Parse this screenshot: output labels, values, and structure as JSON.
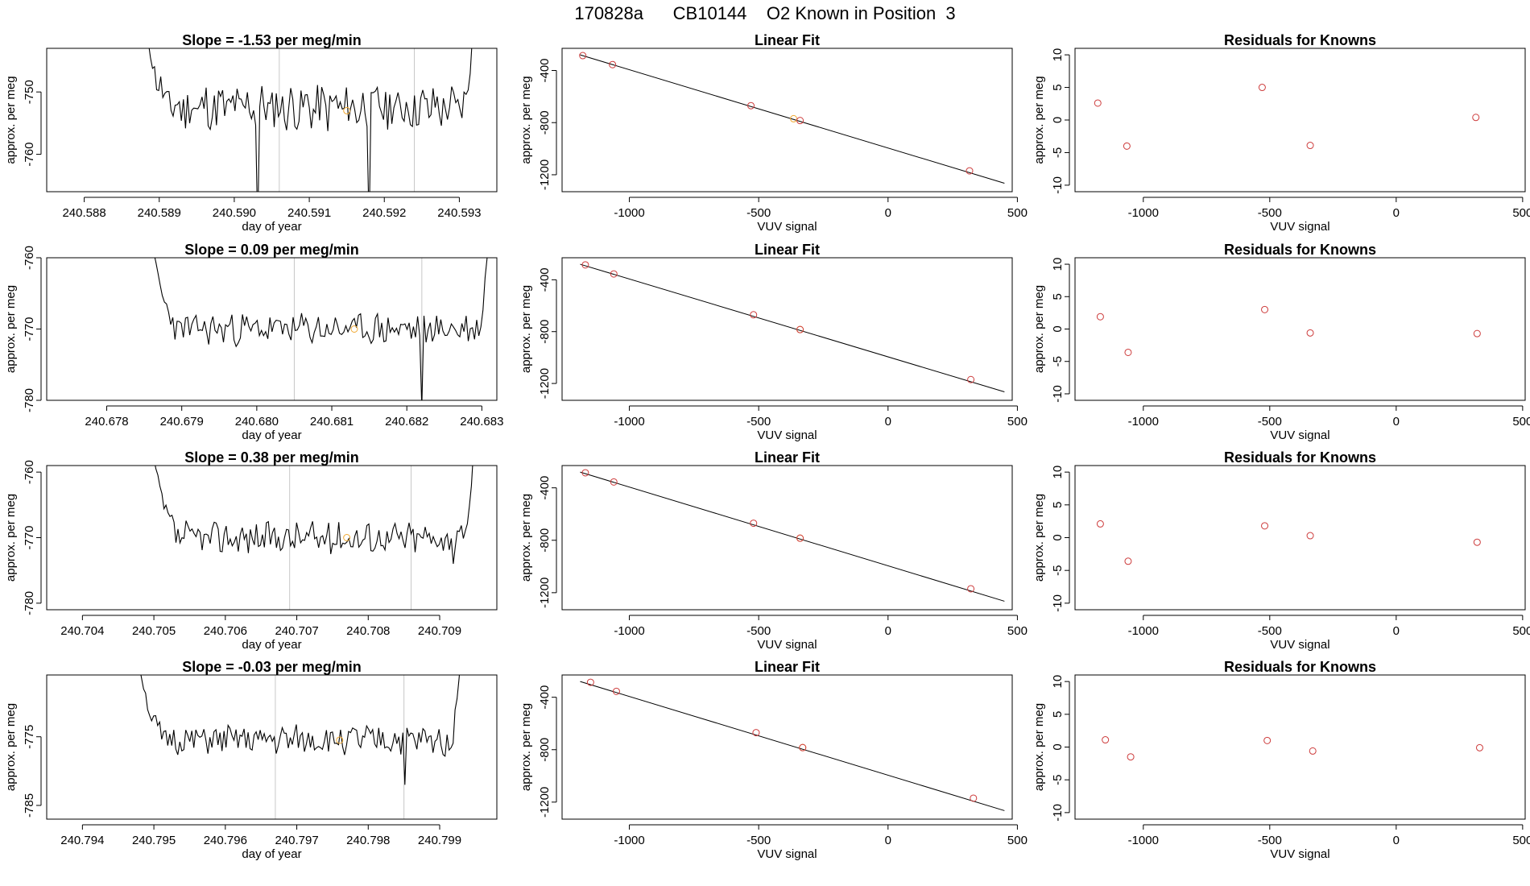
{
  "page_title": "170828a      CB10144    O2 Known in Position  3",
  "colors": {
    "line": "#000000",
    "known_point": "#cd3b3b",
    "sample_point": "#f0a830",
    "marker": "#c8c8c8",
    "axis": "#000000"
  },
  "chart_data": [
    {
      "type": "line",
      "row": 0,
      "col": 0,
      "title": "Slope =  -1.53  per meg/min",
      "xlabel": "day of year",
      "ylabel": "approx. per meg",
      "xlim": [
        240.5875,
        240.5935
      ],
      "ylim": [
        -766,
        -743
      ],
      "xticks": [
        240.588,
        240.589,
        240.59,
        240.591,
        240.592,
        240.593
      ],
      "xtick_labels": [
        "240.588",
        "240.589",
        "240.590",
        "240.591",
        "240.592",
        "240.593"
      ],
      "yticks": [
        -750,
        -760
      ],
      "ytick_labels": [
        "-750",
        "-760"
      ],
      "x_start": 240.5888,
      "x_end": 240.5932,
      "baseline": -752.5,
      "noise": 3.5,
      "seed": 11,
      "edge_start": -738,
      "edge_end": -738,
      "spikes": [
        [
          240.5903,
          -772
        ],
        [
          240.5918,
          -772
        ]
      ],
      "vlines": [
        240.5906,
        240.5924
      ],
      "sample_point": [
        240.5915,
        -753
      ]
    },
    {
      "type": "scatter",
      "row": 0,
      "col": 1,
      "title": "Linear Fit",
      "xlabel": "VUV signal",
      "ylabel": "approx. per meg",
      "xlim": [
        -1260,
        480
      ],
      "ylim": [
        -1330,
        -230
      ],
      "xticks": [
        -1000,
        -500,
        0,
        500
      ],
      "xtick_labels": [
        "-1000",
        "-500",
        "0",
        "500"
      ],
      "yticks": [
        -400,
        -800,
        -1200
      ],
      "ytick_labels": [
        "-400",
        "-800",
        "-1200"
      ],
      "fit_line": {
        "x0": -1190,
        "y0": -280,
        "x1": 450,
        "y1": -1265
      },
      "known_x": [
        -1180,
        -1065,
        -530,
        -340,
        315
      ],
      "known_y": [
        -286,
        -355,
        -670,
        -784,
        -1170
      ],
      "sample_x": [
        -365
      ],
      "sample_y": [
        -770
      ]
    },
    {
      "type": "scatter",
      "row": 0,
      "col": 2,
      "title": "Residuals for Knowns",
      "xlabel": "VUV signal",
      "ylabel": "approx. per meg",
      "xlim": [
        -1270,
        510
      ],
      "ylim": [
        -11,
        11
      ],
      "xticks": [
        -1000,
        -500,
        0,
        500
      ],
      "xtick_labels": [
        "-1000",
        "-500",
        "0",
        "500"
      ],
      "yticks": [
        10,
        5,
        0,
        -5,
        -10
      ],
      "ytick_labels": [
        "10",
        "5",
        "0",
        "-5",
        "-10"
      ],
      "known_x": [
        -1180,
        -1065,
        -530,
        -340,
        315
      ],
      "known_y": [
        2.6,
        -4.0,
        5.0,
        -3.9,
        0.4
      ]
    },
    {
      "type": "line",
      "row": 1,
      "col": 0,
      "title": "Slope =  0.09  per meg/min",
      "xlabel": "day of year",
      "ylabel": "approx. per meg",
      "xlim": [
        240.6772,
        240.6832
      ],
      "ylim": [
        -780,
        -760
      ],
      "xticks": [
        240.678,
        240.679,
        240.68,
        240.681,
        240.682,
        240.683
      ],
      "xtick_labels": [
        "240.678",
        "240.679",
        "240.680",
        "240.681",
        "240.682",
        "240.683"
      ],
      "yticks": [
        -760,
        -770,
        -780
      ],
      "ytick_labels": [
        "-760",
        "-770",
        "-780"
      ],
      "x_start": 240.6786,
      "x_end": 240.6831,
      "baseline": -770,
      "noise": 2.0,
      "seed": 23,
      "edge_start": -758,
      "edge_end": -756,
      "spikes": [
        [
          240.6822,
          -781
        ]
      ],
      "vlines": [
        240.6805,
        240.6822
      ],
      "sample_point": [
        240.6813,
        -770
      ]
    },
    {
      "type": "scatter",
      "row": 1,
      "col": 1,
      "title": "Linear Fit",
      "xlabel": "VUV signal",
      "ylabel": "approx. per meg",
      "xlim": [
        -1260,
        480
      ],
      "ylim": [
        -1330,
        -230
      ],
      "xticks": [
        -1000,
        -500,
        0,
        500
      ],
      "xtick_labels": [
        "-1000",
        "-500",
        "0",
        "500"
      ],
      "yticks": [
        -400,
        -800,
        -1200
      ],
      "ytick_labels": [
        "-400",
        "-800",
        "-1200"
      ],
      "fit_line": {
        "x0": -1190,
        "y0": -280,
        "x1": 450,
        "y1": -1265
      },
      "known_x": [
        -1170,
        -1060,
        -520,
        -340,
        320
      ],
      "known_y": [
        -285,
        -355,
        -670,
        -784,
        -1170
      ],
      "sample_x": [
        -340
      ],
      "sample_y": [
        -784
      ]
    },
    {
      "type": "scatter",
      "row": 1,
      "col": 2,
      "title": "Residuals for Knowns",
      "xlabel": "VUV signal",
      "ylabel": "approx. per meg",
      "xlim": [
        -1270,
        510
      ],
      "ylim": [
        -11,
        11
      ],
      "xticks": [
        -1000,
        -500,
        0,
        500
      ],
      "xtick_labels": [
        "-1000",
        "-500",
        "0",
        "500"
      ],
      "yticks": [
        10,
        5,
        0,
        -5,
        -10
      ],
      "ytick_labels": [
        "10",
        "5",
        "0",
        "-5",
        "-10"
      ],
      "known_x": [
        -1170,
        -1060,
        -520,
        -340,
        320
      ],
      "known_y": [
        1.9,
        -3.6,
        3.0,
        -0.6,
        -0.7
      ]
    },
    {
      "type": "line",
      "row": 2,
      "col": 0,
      "title": "Slope =  0.38  per meg/min",
      "xlabel": "day of year",
      "ylabel": "approx. per meg",
      "xlim": [
        240.7035,
        240.7098
      ],
      "ylim": [
        -781,
        -759
      ],
      "xticks": [
        240.704,
        240.705,
        240.706,
        240.707,
        240.708,
        240.709
      ],
      "xtick_labels": [
        "240.704",
        "240.705",
        "240.706",
        "240.707",
        "240.708",
        "240.709"
      ],
      "yticks": [
        -760,
        -770,
        -780
      ],
      "ytick_labels": [
        "-760",
        "-770",
        "-780"
      ],
      "x_start": 240.705,
      "x_end": 240.7095,
      "baseline": -770,
      "noise": 2.2,
      "seed": 37,
      "edge_start": -758,
      "edge_end": -752,
      "spikes": [
        [
          240.7092,
          -774
        ]
      ],
      "vlines": [
        240.7069,
        240.7086
      ],
      "sample_point": [
        240.7077,
        -770
      ]
    },
    {
      "type": "scatter",
      "row": 2,
      "col": 1,
      "title": "Linear Fit",
      "xlabel": "VUV signal",
      "ylabel": "approx. per meg",
      "xlim": [
        -1260,
        480
      ],
      "ylim": [
        -1330,
        -230
      ],
      "xticks": [
        -1000,
        -500,
        0,
        500
      ],
      "xtick_labels": [
        "-1000",
        "-500",
        "0",
        "500"
      ],
      "yticks": [
        -400,
        -800,
        -1200
      ],
      "ytick_labels": [
        "-400",
        "-800",
        "-1200"
      ],
      "fit_line": {
        "x0": -1190,
        "y0": -280,
        "x1": 450,
        "y1": -1265
      },
      "known_x": [
        -1170,
        -1060,
        -520,
        -340,
        320
      ],
      "known_y": [
        -285,
        -355,
        -670,
        -784,
        -1170
      ],
      "sample_x": [
        -340
      ],
      "sample_y": [
        -784
      ]
    },
    {
      "type": "scatter",
      "row": 2,
      "col": 2,
      "title": "Residuals for Knowns",
      "xlabel": "VUV signal",
      "ylabel": "approx. per meg",
      "xlim": [
        -1270,
        510
      ],
      "ylim": [
        -11,
        11
      ],
      "xticks": [
        -1000,
        -500,
        0,
        500
      ],
      "xtick_labels": [
        "-1000",
        "-500",
        "0",
        "500"
      ],
      "yticks": [
        10,
        5,
        0,
        -5,
        -10
      ],
      "ytick_labels": [
        "10",
        "5",
        "0",
        "-5",
        "-10"
      ],
      "known_x": [
        -1170,
        -1060,
        -520,
        -340,
        320
      ],
      "known_y": [
        2.1,
        -3.6,
        1.8,
        0.3,
        -0.7
      ]
    },
    {
      "type": "line",
      "row": 3,
      "col": 0,
      "title": "Slope =  -0.03  per meg/min",
      "xlabel": "day of year",
      "ylabel": "approx. per meg",
      "xlim": [
        240.7935,
        240.7998
      ],
      "ylim": [
        -787,
        -766
      ],
      "xticks": [
        240.794,
        240.795,
        240.796,
        240.797,
        240.798,
        240.799
      ],
      "xtick_labels": [
        "240.794",
        "240.795",
        "240.796",
        "240.797",
        "240.798",
        "240.799"
      ],
      "yticks": [
        -775,
        -785
      ],
      "ytick_labels": [
        "-775",
        "-785"
      ],
      "x_start": 240.7948,
      "x_end": 240.7993,
      "baseline": -775.5,
      "noise": 1.9,
      "seed": 51,
      "edge_start": -765,
      "edge_end": -763,
      "spikes": [
        [
          240.7985,
          -782
        ]
      ],
      "vlines": [
        240.7967,
        240.7985
      ],
      "sample_point": [
        240.7976,
        -775.5
      ]
    },
    {
      "type": "scatter",
      "row": 3,
      "col": 1,
      "title": "Linear Fit",
      "xlabel": "VUV signal",
      "ylabel": "approx. per meg",
      "xlim": [
        -1260,
        480
      ],
      "ylim": [
        -1330,
        -230
      ],
      "xticks": [
        -1000,
        -500,
        0,
        500
      ],
      "xtick_labels": [
        "-1000",
        "-500",
        "0",
        "500"
      ],
      "yticks": [
        -400,
        -800,
        -1200
      ],
      "ytick_labels": [
        "-400",
        "-800",
        "-1200"
      ],
      "fit_line": {
        "x0": -1190,
        "y0": -280,
        "x1": 450,
        "y1": -1265
      },
      "known_x": [
        -1150,
        -1050,
        -510,
        -330,
        330
      ],
      "known_y": [
        -286,
        -355,
        -670,
        -784,
        -1170
      ],
      "sample_x": [
        -330
      ],
      "sample_y": [
        -784
      ]
    },
    {
      "type": "scatter",
      "row": 3,
      "col": 2,
      "title": "Residuals for Knowns",
      "xlabel": "VUV signal",
      "ylabel": "approx. per meg",
      "xlim": [
        -1270,
        510
      ],
      "ylim": [
        -11,
        11
      ],
      "xticks": [
        -1000,
        -500,
        0,
        500
      ],
      "xtick_labels": [
        "-1000",
        "-500",
        "0",
        "500"
      ],
      "yticks": [
        10,
        5,
        0,
        -5,
        -10
      ],
      "ytick_labels": [
        "10",
        "5",
        "0",
        "-5",
        "-10"
      ],
      "known_x": [
        -1150,
        -1050,
        -510,
        -330,
        330
      ],
      "known_y": [
        1.1,
        -1.5,
        1.0,
        -0.6,
        -0.1
      ]
    }
  ]
}
